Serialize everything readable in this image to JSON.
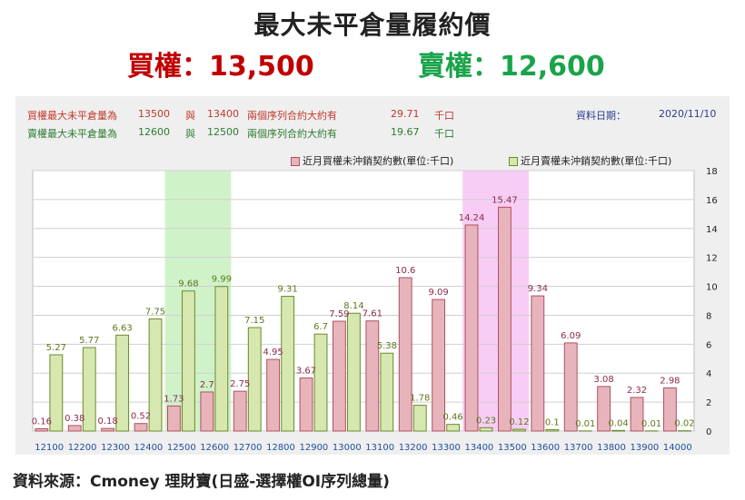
{
  "title": "最大未平倉量履約價",
  "call_label": "買權：13,500",
  "put_label": "賣權：12,600",
  "info": {
    "call_row": {
      "text": "買權最大未平倉量為",
      "v1": "13500",
      "sep": "與",
      "v2": "13400",
      "desc": "兩個序列合約大約有",
      "amount": "29.71",
      "unit": "千口"
    },
    "put_row": {
      "text": "賣權最大未平倉量為",
      "v1": "12600",
      "sep": "與",
      "v2": "12500",
      "desc": "兩個序列合約大約有",
      "amount": "19.67",
      "unit": "千口"
    },
    "date_label": "資料日期：",
    "date": "2020/11/10"
  },
  "source": "資料來源：Cmoney 理財寶(日盛-選擇權OI序列總量)",
  "colors": {
    "call_fill": "#e8b4bc",
    "call_stroke": "#b05060",
    "put_fill": "#d6e8b0",
    "put_stroke": "#6a8a2a",
    "highlight_green": "#c8f0c0",
    "highlight_pink": "#f6c4f4",
    "label_call": "#8b2a4a",
    "label_put": "#5a7a1a",
    "tick": "#1f4fa0"
  },
  "chart_data": {
    "type": "bar",
    "categories": [
      "12100",
      "12200",
      "12300",
      "12400",
      "12500",
      "12600",
      "12700",
      "12800",
      "12900",
      "13000",
      "13100",
      "13200",
      "13300",
      "13400",
      "13500",
      "13600",
      "13700",
      "13800",
      "13900",
      "14000"
    ],
    "series": [
      {
        "name": "近月買權未沖銷契約數(單位:千口)",
        "values": [
          0.16,
          0.38,
          0.18,
          0.52,
          1.73,
          2.7,
          2.75,
          4.95,
          3.67,
          7.59,
          7.61,
          10.6,
          9.09,
          14.24,
          15.47,
          9.34,
          6.09,
          3.08,
          2.32,
          2.98
        ]
      },
      {
        "name": "近月賣權未沖銷契約數(單位:千口)",
        "values": [
          5.27,
          5.77,
          6.63,
          7.75,
          9.68,
          9.99,
          7.15,
          9.31,
          6.7,
          8.14,
          5.38,
          1.78,
          0.46,
          0.23,
          0.12,
          0.1,
          0.01,
          0.04,
          0.01,
          0.02
        ]
      }
    ],
    "yticks": [
      "0",
      "2",
      "4",
      "6",
      "8",
      "10",
      "12",
      "14",
      "16",
      "18"
    ],
    "ylim": [
      0,
      18
    ],
    "highlight_put": [
      "12500",
      "12600"
    ],
    "highlight_call": [
      "13400",
      "13500"
    ],
    "legend_position": "top-right",
    "grid": true
  }
}
